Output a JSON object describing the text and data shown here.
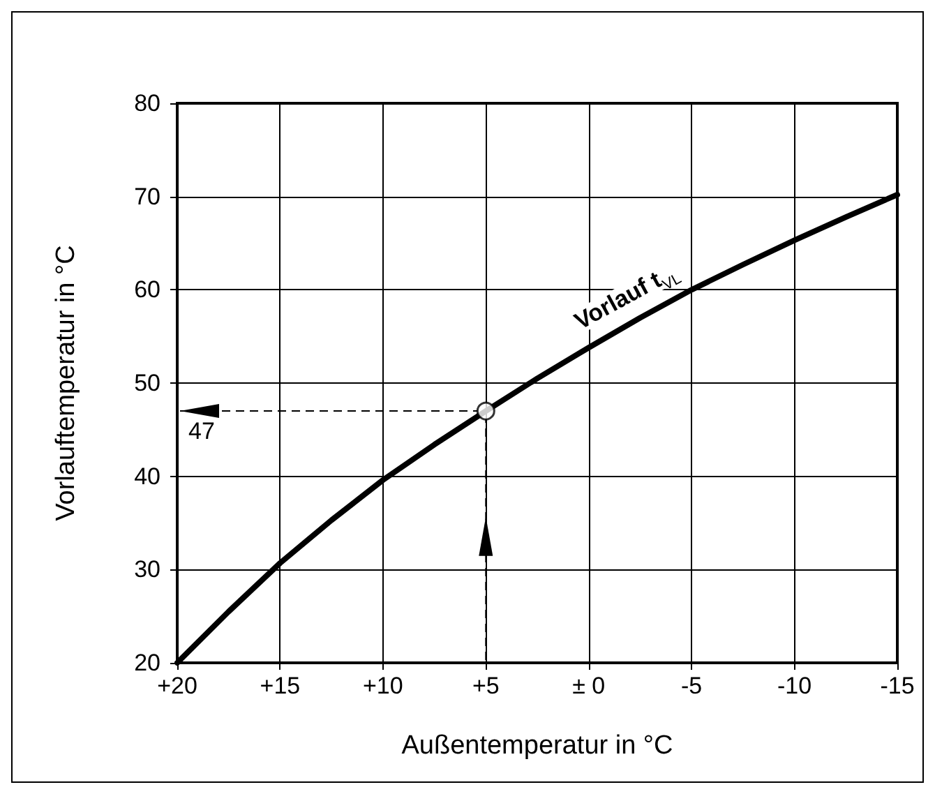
{
  "chart_data": {
    "type": "line",
    "xlabel": "Außentemperatur in °C",
    "ylabel": "Vorlauftemperatur in °C",
    "xlim": [
      20,
      -15
    ],
    "xticks": [
      {
        "value": 20,
        "label": "+20"
      },
      {
        "value": 15,
        "label": "+15"
      },
      {
        "value": 10,
        "label": "+10"
      },
      {
        "value": 5,
        "label": "+5"
      },
      {
        "value": 0,
        "label": "± 0"
      },
      -5,
      -10,
      -15
    ],
    "ylim": [
      20,
      80
    ],
    "yticks": [
      20,
      30,
      40,
      50,
      60,
      70,
      80
    ],
    "grid": true,
    "legend": false,
    "marker": "none",
    "line_style": "solid",
    "series": [
      {
        "name": "Vorlauf t$_{VL}$",
        "color": "#000000",
        "x": [
          20,
          17.5,
          15,
          12.5,
          10,
          7.5,
          5,
          2.5,
          0,
          -2.5,
          -5,
          -7.5,
          -10,
          -12.5,
          -15
        ],
        "values": [
          20,
          25.5,
          30.7,
          35.3,
          39.6,
          43.4,
          47,
          50.5,
          53.8,
          57,
          60,
          62.7,
          65.3,
          67.8,
          70.2
        ]
      },
      {
        "type": "scatter",
        "color": "#ffffff",
        "marker": "circle",
        "x": [
          5
        ],
        "values": [
          47
        ]
      }
    ],
    "annotations": [
      "47"
    ]
  }
}
